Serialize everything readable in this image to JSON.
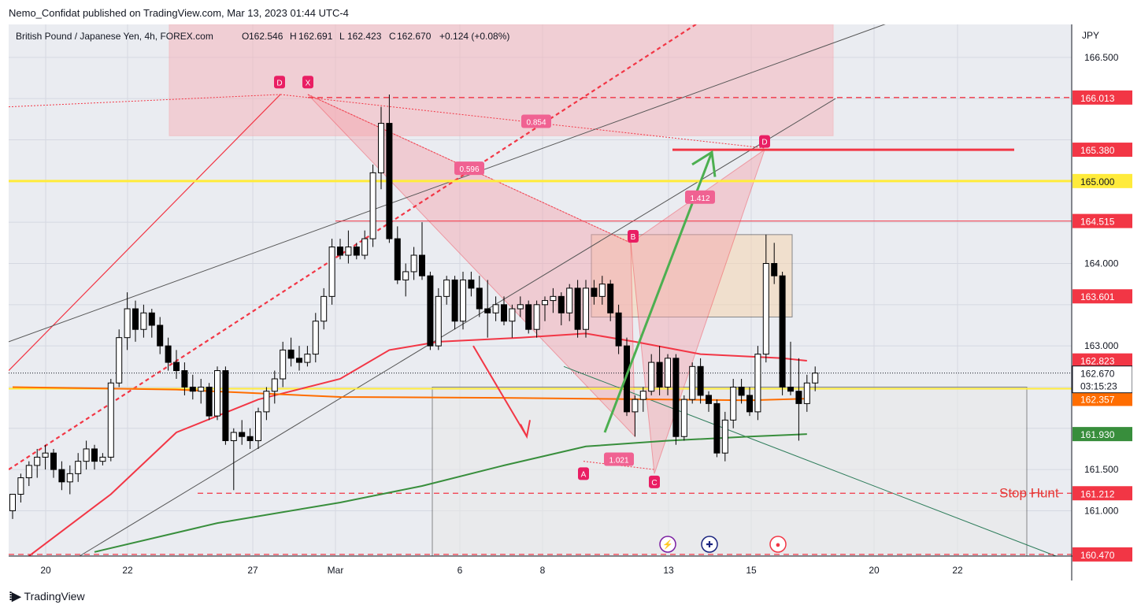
{
  "publisher_line": "Nemo_Confidat published on TradingView.com, Mar 13, 2023 01:44 UTC-4",
  "footer_brand": "TradingView",
  "legend": {
    "symbol": "British Pound / Japanese Yen, 4h, FOREX.com",
    "o_label": "O",
    "o_value": "162.546",
    "h_label": "H",
    "h_value": "162.691",
    "l_label": "L",
    "l_value": "162.423",
    "c_label": "C",
    "c_value": "162.670",
    "change": "+0.124 (+0.08%)"
  },
  "price_labels": {
    "p1": "166.013",
    "p2": "165.380",
    "p3": "165.000",
    "p4": "164.515",
    "p5": "163.601",
    "p6": "162.823",
    "p7": "162.670",
    "p7b": "03:15:23",
    "p8": "162.357",
    "p9": "161.930",
    "p10": "161.212",
    "p11": "160.470"
  },
  "annotations": {
    "stop_hunt": "Stop Hunt",
    "fib_0854": "0.854",
    "fib_0596": "0.596",
    "fib_1412": "1.412",
    "fib_1021": "1.021",
    "pt_d1": "D",
    "pt_x": "X",
    "pt_b": "B",
    "pt_a": "A",
    "pt_c": "C",
    "pt_d2": "D"
  },
  "colors": {
    "up": "#ffffff",
    "down": "#000000",
    "ma_red": "#f23645",
    "ma_orange": "#ff6d00",
    "ma_green": "#388e3c",
    "yellow": "#ffeb3b",
    "pattern": "#f23645",
    "arrow_green": "#4caf50"
  },
  "chart_data": {
    "type": "candlestick",
    "symbol": "British Pound / Japanese Yen",
    "interval": "4h",
    "y_axis_unit": "JPY",
    "ylim": [
      160.45,
      166.9
    ],
    "y_ticks": [
      166.5,
      164.0,
      163.0,
      161.5,
      161.0
    ],
    "x_tick_labels": [
      "20",
      "22",
      "27",
      "Mar",
      "6",
      "8",
      "13",
      "15",
      "20",
      "22"
    ],
    "last_close": 162.67,
    "horizontal_levels": [
      166.013,
      165.38,
      165.0,
      164.515,
      163.601,
      162.823,
      162.357,
      161.93,
      161.212,
      160.47
    ],
    "candles": [
      [
        161.0,
        161.2,
        160.9,
        161.2
      ],
      [
        161.2,
        161.45,
        161.1,
        161.4
      ],
      [
        161.4,
        161.6,
        161.3,
        161.55
      ],
      [
        161.55,
        161.75,
        161.4,
        161.65
      ],
      [
        161.65,
        161.8,
        161.5,
        161.7
      ],
      [
        161.7,
        161.75,
        161.4,
        161.5
      ],
      [
        161.5,
        161.6,
        161.25,
        161.35
      ],
      [
        161.35,
        161.55,
        161.2,
        161.45
      ],
      [
        161.45,
        161.7,
        161.35,
        161.6
      ],
      [
        161.6,
        161.85,
        161.5,
        161.75
      ],
      [
        161.75,
        161.8,
        161.5,
        161.6
      ],
      [
        161.6,
        161.7,
        161.55,
        161.65
      ],
      [
        161.65,
        162.6,
        161.6,
        162.55
      ],
      [
        162.55,
        163.2,
        162.5,
        163.1
      ],
      [
        163.1,
        163.65,
        162.95,
        163.45
      ],
      [
        163.45,
        163.55,
        163.05,
        163.2
      ],
      [
        163.2,
        163.5,
        163.1,
        163.4
      ],
      [
        163.4,
        163.45,
        163.1,
        163.25
      ],
      [
        163.25,
        163.35,
        162.9,
        163.0
      ],
      [
        163.0,
        163.1,
        162.7,
        162.8
      ],
      [
        162.8,
        162.95,
        162.6,
        162.7
      ],
      [
        162.7,
        162.8,
        162.4,
        162.5
      ],
      [
        162.5,
        162.65,
        162.35,
        162.45
      ],
      [
        162.45,
        162.6,
        162.3,
        162.5
      ],
      [
        162.5,
        162.55,
        162.1,
        162.15
      ],
      [
        162.15,
        162.75,
        162.1,
        162.7
      ],
      [
        162.7,
        162.75,
        161.8,
        161.85
      ],
      [
        161.85,
        162.0,
        161.25,
        161.95
      ],
      [
        161.95,
        162.1,
        161.8,
        161.9
      ],
      [
        161.9,
        162.0,
        161.75,
        161.85
      ],
      [
        161.85,
        162.25,
        161.75,
        162.2
      ],
      [
        162.2,
        162.5,
        162.1,
        162.45
      ],
      [
        162.45,
        162.7,
        162.3,
        162.6
      ],
      [
        162.6,
        163.05,
        162.5,
        162.95
      ],
      [
        162.95,
        163.1,
        162.75,
        162.85
      ],
      [
        162.85,
        163.0,
        162.7,
        162.8
      ],
      [
        162.8,
        163.0,
        162.75,
        162.9
      ],
      [
        162.9,
        163.4,
        162.8,
        163.3
      ],
      [
        163.3,
        163.7,
        163.2,
        163.6
      ],
      [
        163.6,
        164.3,
        163.5,
        164.2
      ],
      [
        164.2,
        164.3,
        164.05,
        164.1
      ],
      [
        164.1,
        164.4,
        164.0,
        164.2
      ],
      [
        164.2,
        164.25,
        164.05,
        164.1
      ],
      [
        164.1,
        164.4,
        164.05,
        164.3
      ],
      [
        164.3,
        165.2,
        164.2,
        165.1
      ],
      [
        165.1,
        165.9,
        164.9,
        165.7
      ],
      [
        165.7,
        166.05,
        164.25,
        164.3
      ],
      [
        164.3,
        164.45,
        163.75,
        163.8
      ],
      [
        163.8,
        164.0,
        163.6,
        163.9
      ],
      [
        163.9,
        164.2,
        163.8,
        164.1
      ],
      [
        164.1,
        164.5,
        163.8,
        163.85
      ],
      [
        163.85,
        163.9,
        162.95,
        163.0
      ],
      [
        163.0,
        163.7,
        162.95,
        163.6
      ],
      [
        163.6,
        163.85,
        163.5,
        163.8
      ],
      [
        163.8,
        163.85,
        163.2,
        163.3
      ],
      [
        163.3,
        163.9,
        163.2,
        163.8
      ],
      [
        163.8,
        163.9,
        163.6,
        163.7
      ],
      [
        163.7,
        163.85,
        163.35,
        163.45
      ],
      [
        163.45,
        163.8,
        163.1,
        163.4
      ],
      [
        163.4,
        163.6,
        163.3,
        163.5
      ],
      [
        163.5,
        163.6,
        163.25,
        163.3
      ],
      [
        163.3,
        163.5,
        163.1,
        163.45
      ],
      [
        163.45,
        163.6,
        163.35,
        163.5
      ],
      [
        163.5,
        163.55,
        163.15,
        163.2
      ],
      [
        163.2,
        163.55,
        163.1,
        163.5
      ],
      [
        163.5,
        163.6,
        163.3,
        163.55
      ],
      [
        163.55,
        163.7,
        163.4,
        163.6
      ],
      [
        163.6,
        163.65,
        163.25,
        163.4
      ],
      [
        163.4,
        163.75,
        163.3,
        163.7
      ],
      [
        163.7,
        163.8,
        163.1,
        163.2
      ],
      [
        163.2,
        163.8,
        163.1,
        163.7
      ],
      [
        163.7,
        163.8,
        163.5,
        163.6
      ],
      [
        163.6,
        163.85,
        163.5,
        163.75
      ],
      [
        163.75,
        163.8,
        163.3,
        163.4
      ],
      [
        163.4,
        163.5,
        162.9,
        163.0
      ],
      [
        163.0,
        163.1,
        162.15,
        162.2
      ],
      [
        162.2,
        162.4,
        161.9,
        162.35
      ],
      [
        162.35,
        162.5,
        162.2,
        162.45
      ],
      [
        162.45,
        162.9,
        162.4,
        162.8
      ],
      [
        162.8,
        163.0,
        162.4,
        162.5
      ],
      [
        162.5,
        162.9,
        162.4,
        162.85
      ],
      [
        162.85,
        162.9,
        161.8,
        161.9
      ],
      [
        161.9,
        162.4,
        161.85,
        162.35
      ],
      [
        162.35,
        162.8,
        162.3,
        162.75
      ],
      [
        162.75,
        162.85,
        162.3,
        162.4
      ],
      [
        162.4,
        162.45,
        162.2,
        162.3
      ],
      [
        162.3,
        162.35,
        161.65,
        161.7
      ],
      [
        161.7,
        162.2,
        161.6,
        162.1
      ],
      [
        162.1,
        162.6,
        162.0,
        162.5
      ],
      [
        162.5,
        162.6,
        162.3,
        162.4
      ],
      [
        162.4,
        162.5,
        162.15,
        162.2
      ],
      [
        162.2,
        163.0,
        162.1,
        162.9
      ],
      [
        162.9,
        164.35,
        162.8,
        164.0
      ],
      [
        164.0,
        164.25,
        163.75,
        163.85
      ],
      [
        163.85,
        163.9,
        162.4,
        162.5
      ],
      [
        162.5,
        163.05,
        162.4,
        162.45
      ],
      [
        162.45,
        162.85,
        161.85,
        162.3
      ],
      [
        162.3,
        162.65,
        162.2,
        162.55
      ],
      [
        162.55,
        162.75,
        162.45,
        162.67
      ]
    ],
    "moving_averages": [
      {
        "color": "#f23645",
        "points": [
          [
            0,
            160.3
          ],
          [
            12,
            161.2
          ],
          [
            20,
            161.95
          ],
          [
            30,
            162.35
          ],
          [
            40,
            162.6
          ],
          [
            46,
            162.95
          ],
          [
            52,
            163.05
          ],
          [
            62,
            163.1
          ],
          [
            70,
            163.15
          ],
          [
            76,
            163.05
          ],
          [
            84,
            162.9
          ],
          [
            94,
            162.85
          ],
          [
            97,
            162.82
          ]
        ]
      },
      {
        "color": "#ff6d00",
        "points": [
          [
            0,
            162.5
          ],
          [
            20,
            162.47
          ],
          [
            40,
            162.38
          ],
          [
            60,
            162.37
          ],
          [
            80,
            162.35
          ],
          [
            90,
            162.34
          ],
          [
            97,
            162.36
          ]
        ]
      },
      {
        "color": "#388e3c",
        "points": [
          [
            10,
            160.5
          ],
          [
            25,
            160.85
          ],
          [
            40,
            161.1
          ],
          [
            50,
            161.3
          ],
          [
            60,
            161.55
          ],
          [
            70,
            161.78
          ],
          [
            80,
            161.85
          ],
          [
            90,
            161.9
          ],
          [
            97,
            161.93
          ]
        ]
      }
    ]
  }
}
